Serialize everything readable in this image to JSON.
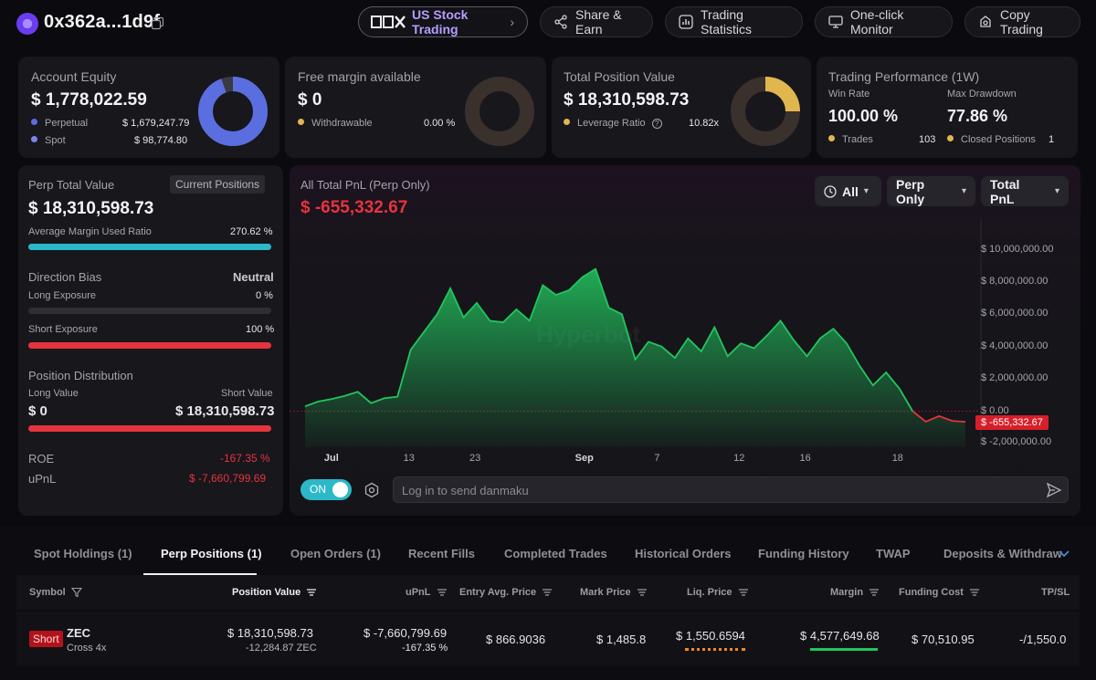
{
  "header": {
    "address": "0x362a...1d9f",
    "stock_pill": "US Stock Trading",
    "share_earn": "Share & Earn",
    "trading_statistics": "Trading Statistics",
    "one_click_monitor": "One-click Monitor",
    "copy_trading": "Copy Trading"
  },
  "equity": {
    "title": "Account Equity",
    "value": "$ 1,778,022.59",
    "perpetual_label": "Perpetual",
    "perpetual_value": "$ 1,679,247.79",
    "spot_label": "Spot",
    "spot_value": "$ 98,774.80",
    "perpetual_share": 0.944
  },
  "free_margin": {
    "title": "Free margin available",
    "value": "$ 0",
    "withdrawable_label": "Withdrawable",
    "withdrawable_value": "0.00 %"
  },
  "position_value": {
    "title": "Total Position Value",
    "value": "$ 18,310,598.73",
    "leverage_label": "Leverage Ratio",
    "leverage_value": "10.82x"
  },
  "performance": {
    "title": "Trading Performance (1W)",
    "win_rate_label": "Win Rate",
    "win_rate": "100.00 %",
    "max_drawdown_label": "Max Drawdown",
    "max_drawdown": "77.86 %",
    "trades_label": "Trades",
    "trades": "103",
    "closed_label": "Closed Positions",
    "closed": "1"
  },
  "perp": {
    "title": "Perp Total Value",
    "badge": "Current Positions",
    "value": "$ 18,310,598.73",
    "avg_margin_label": "Average Margin Used Ratio",
    "avg_margin_value": "270.62 %",
    "direction_label": "Direction Bias",
    "direction_value": "Neutral",
    "long_exposure_label": "Long Exposure",
    "long_exposure_value": "0 %",
    "short_exposure_label": "Short Exposure",
    "short_exposure_value": "100 %",
    "distribution_label": "Position Distribution",
    "long_value_label": "Long Value",
    "long_value": "$ 0",
    "short_value_label": "Short Value",
    "short_value": "$ 18,310,598.73",
    "roe_label": "ROE",
    "roe_value": "-167.35 %",
    "upnl_label": "uPnL",
    "upnl_value": "$ -7,660,799.69"
  },
  "pnl": {
    "title": "All Total PnL (Perp Only)",
    "value": "$ -655,332.67",
    "filter_time": "All",
    "filter_scope": "Perp Only",
    "filter_metric": "Total PnL",
    "watermark": "Hyperbot",
    "toggle_label": "ON",
    "danmaku_placeholder": "Log in to send danmaku",
    "current_marker": "$ -655,332.67"
  },
  "chart_data": {
    "type": "area",
    "title": "All Total PnL (Perp Only)",
    "ylim": [
      -2000000,
      11000000
    ],
    "yticks": [
      "$ 10,000,000.00",
      "$ 8,000,000.00",
      "$ 6,000,000.00",
      "$ 4,000,000.00",
      "$ 2,000,000.00",
      "$ 0.00",
      "$ -2,000,000.00"
    ],
    "ytick_values": [
      10000000,
      8000000,
      6000000,
      4000000,
      2000000,
      0,
      -2000000
    ],
    "xticks": [
      "Jul",
      "13",
      "23",
      "Sep",
      "7",
      "12",
      "16",
      "18"
    ],
    "xtick_bold": [
      true,
      false,
      false,
      true,
      false,
      false,
      false,
      false
    ],
    "xtick_at": [
      2,
      8,
      13,
      21,
      27,
      33,
      38,
      45
    ],
    "values": [
      300000,
      600000,
      750000,
      950000,
      1200000,
      500000,
      800000,
      900000,
      3800000,
      4900000,
      6000000,
      7600000,
      5800000,
      6700000,
      5600000,
      5500000,
      6300000,
      5600000,
      7800000,
      7200000,
      7500000,
      8300000,
      8800000,
      6400000,
      6000000,
      3200000,
      4300000,
      4000000,
      3300000,
      4500000,
      3700000,
      5200000,
      3400000,
      4200000,
      3900000,
      4700000,
      5600000,
      4400000,
      3400000,
      4500000,
      5100000,
      4200000,
      2800000,
      1600000,
      2400000,
      1400000,
      0,
      -650000,
      -300000,
      -600000,
      -655333
    ],
    "color": "#22c55e"
  },
  "tabs": [
    "Spot Holdings (1)",
    "Perp Positions (1)",
    "Open Orders (1)",
    "Recent Fills",
    "Completed Trades",
    "Historical Orders",
    "Funding History",
    "TWAP",
    "Deposits & Withdraw"
  ],
  "table": {
    "headers": [
      "Symbol",
      "Position Value",
      "uPnL",
      "Entry Avg. Price",
      "Mark Price",
      "Liq. Price",
      "Margin",
      "Funding Cost",
      "TP/SL"
    ],
    "row": {
      "side": "Short",
      "symbol": "ZEC",
      "mode": "Cross 4x",
      "position_value": "$ 18,310,598.73",
      "position_size": "-12,284.87 ZEC",
      "upnl": "$ -7,660,799.69",
      "upnl_pct": "-167.35 %",
      "entry_price": "$ 866.9036",
      "mark_price": "$ 1,485.8",
      "liq_price": "$ 1,550.6594",
      "margin": "$ 4,577,649.68",
      "funding_cost": "$ 70,510.95",
      "tpsl": "-/1,550.0"
    }
  },
  "colors": {
    "perpetual": "#5b6ee0",
    "spot": "#7a86e6",
    "gold": "#e2b64f",
    "accent_cyan": "#2bb8c9",
    "red": "#e5343d",
    "green": "#22c55e"
  }
}
